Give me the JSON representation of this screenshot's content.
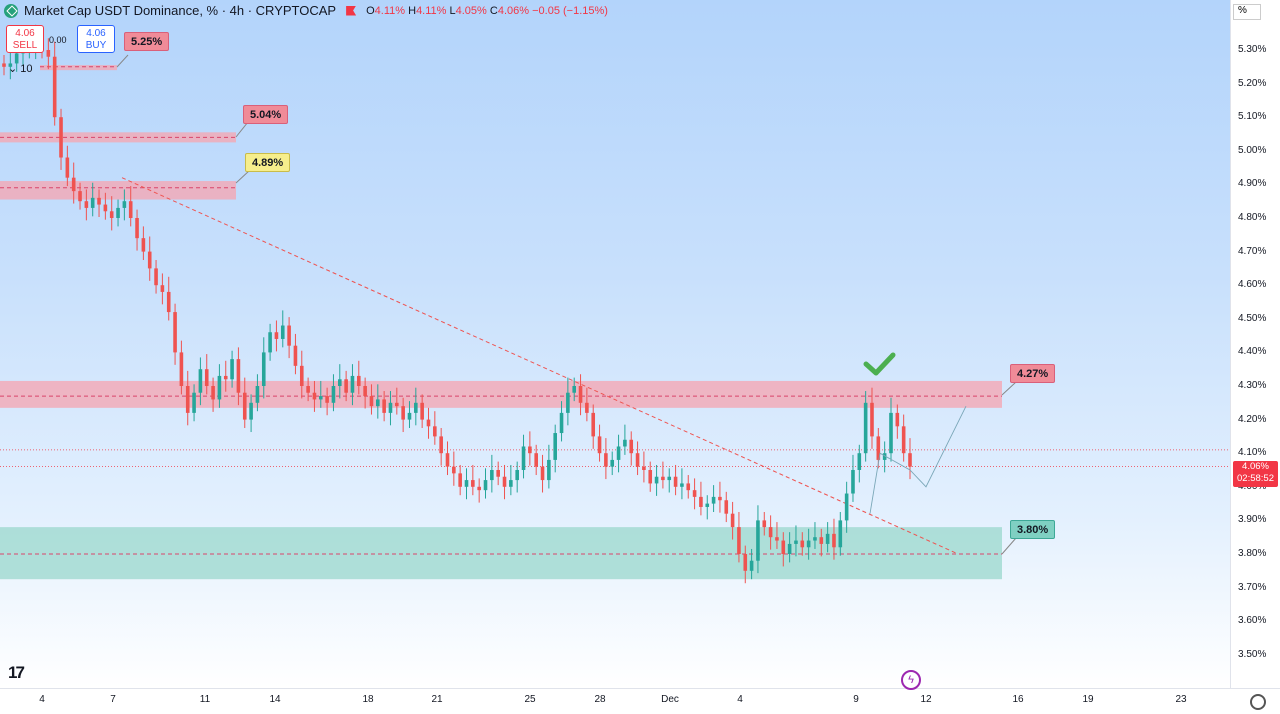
{
  "header": {
    "symbol": "Market Cap USDT Dominance, % · 4h · CRYPTOCAP",
    "open_label": "O",
    "open": "4.11%",
    "high_label": "H",
    "high": "4.11%",
    "low_label": "L",
    "low": "4.05%",
    "close_label": "C",
    "close": "4.06%",
    "change": "−0.05 (−1.15%)"
  },
  "trade": {
    "sell_price": "4.06",
    "sell_label": "SELL",
    "buy_price": "4.06",
    "buy_label": "BUY",
    "spread": "0.00",
    "volume": "10"
  },
  "price_axis": {
    "unit_badge": "%",
    "ticks": [
      "5.30%",
      "5.20%",
      "5.10%",
      "5.00%",
      "4.90%",
      "4.80%",
      "4.70%",
      "4.60%",
      "4.50%",
      "4.40%",
      "4.30%",
      "4.20%",
      "4.10%",
      "4.00%",
      "3.90%",
      "3.80%",
      "3.70%",
      "3.60%",
      "3.50%"
    ],
    "current_price": "4.06%",
    "countdown": "02:58:52"
  },
  "time_axis": {
    "ticks": [
      "4",
      "7",
      "11",
      "14",
      "18",
      "21",
      "25",
      "28",
      "Dec",
      "4",
      "9",
      "12",
      "16",
      "19",
      "23"
    ]
  },
  "callouts": [
    "5.25%",
    "5.04%",
    "4.89%",
    "4.27%",
    "3.80%"
  ],
  "colors": {
    "up": "#26a69a",
    "down": "#ef5350",
    "resistance_zone": "#f4a7b4",
    "support_zone": "#9fd9cf",
    "price_tag": "#f23645",
    "check": "#4caf50"
  },
  "icons": [
    "tether-logo",
    "flag-icon",
    "chevron-down-icon",
    "tradingview-logo",
    "flash-icon",
    "gear-icon",
    "check-mark-icon"
  ],
  "chart_data": {
    "type": "candlestick",
    "y_range": [
      3.45,
      5.37
    ],
    "zones": [
      {
        "kind": "resistance",
        "from": 4.235,
        "to": 4.315,
        "level": 4.27
      },
      {
        "kind": "support",
        "from": 3.725,
        "to": 3.88,
        "level": 3.8
      },
      {
        "kind": "resistance",
        "from": 4.855,
        "to": 4.91,
        "level": 4.89
      },
      {
        "kind": "resistance",
        "from": 5.025,
        "to": 5.055,
        "level": 5.04
      },
      {
        "kind": "resistance",
        "from": 5.24,
        "to": 5.255,
        "level": 5.25
      }
    ],
    "trendline": [
      [
        4.92,
        0
      ],
      [
        3.8,
        1
      ]
    ],
    "closes": [
      5.25,
      5.26,
      5.29,
      5.3,
      5.31,
      5.33,
      5.3,
      5.28,
      5.1,
      4.98,
      4.92,
      4.88,
      4.85,
      4.83,
      4.86,
      4.84,
      4.82,
      4.8,
      4.83,
      4.85,
      4.8,
      4.74,
      4.7,
      4.65,
      4.6,
      4.58,
      4.52,
      4.4,
      4.3,
      4.22,
      4.28,
      4.35,
      4.3,
      4.26,
      4.33,
      4.32,
      4.38,
      4.28,
      4.2,
      4.25,
      4.3,
      4.4,
      4.46,
      4.44,
      4.48,
      4.42,
      4.36,
      4.3,
      4.28,
      4.26,
      4.27,
      4.25,
      4.3,
      4.32,
      4.28,
      4.33,
      4.3,
      4.27,
      4.24,
      4.26,
      4.22,
      4.25,
      4.24,
      4.2,
      4.22,
      4.25,
      4.2,
      4.18,
      4.15,
      4.1,
      4.06,
      4.04,
      4.0,
      4.02,
      4.0,
      3.99,
      4.02,
      4.05,
      4.03,
      4.0,
      4.02,
      4.05,
      4.12,
      4.1,
      4.06,
      4.02,
      4.08,
      4.16,
      4.22,
      4.28,
      4.3,
      4.25,
      4.22,
      4.15,
      4.1,
      4.06,
      4.08,
      4.12,
      4.14,
      4.1,
      4.06,
      4.05,
      4.01,
      4.03,
      4.02,
      4.03,
      4.0,
      4.01,
      3.99,
      3.97,
      3.94,
      3.95,
      3.97,
      3.96,
      3.92,
      3.88,
      3.8,
      3.75,
      3.78,
      3.9,
      3.88,
      3.85,
      3.84,
      3.8,
      3.83,
      3.84,
      3.82,
      3.84,
      3.85,
      3.83,
      3.86,
      3.82,
      3.9,
      3.98,
      4.05,
      4.1,
      4.25,
      4.15,
      4.08,
      4.1,
      4.22,
      4.18,
      4.1,
      4.06
    ]
  }
}
